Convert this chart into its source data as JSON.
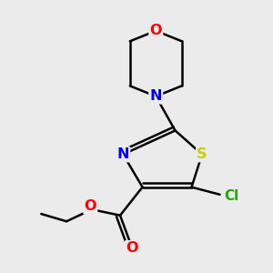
{
  "background_color": "#ebebeb",
  "atom_colors": {
    "O": "#ff0000",
    "N": "#0000ff",
    "S": "#cccc00",
    "Cl": "#22aa00",
    "C": "#000000"
  },
  "bond_color": "#000000",
  "bond_width": 1.8,
  "figsize": [
    3.0,
    3.0
  ],
  "dpi": 100
}
